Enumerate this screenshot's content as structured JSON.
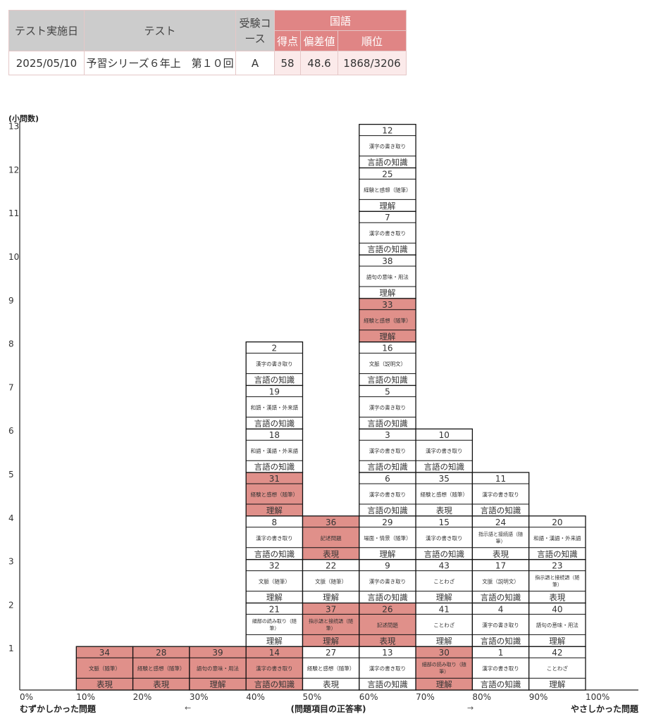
{
  "score_table": {
    "headers": {
      "date": "テスト実施日",
      "test": "テスト",
      "course": "受験コース",
      "subject": "国語",
      "score": "得点",
      "deviation": "偏差値",
      "rank": "順位"
    },
    "row": {
      "date": "2025/05/10",
      "test": "予習シリーズ６年上　第１０回",
      "course": "A",
      "score": "58",
      "deviation": "48.6",
      "rank": "1868/3206"
    }
  },
  "chart_data": {
    "type": "bar",
    "ylabel": "(小問数)",
    "xlabel": "(問題項目の正答率)",
    "left_label": "むずかしかった問題",
    "right_label": "やさしかった問題",
    "left_arrow": "←",
    "right_arrow": "→",
    "x_ticks": [
      "0%",
      "10%",
      "20%",
      "30%",
      "40%",
      "50%",
      "60%",
      "70%",
      "80%",
      "90%",
      "100%"
    ],
    "y_ticks": [
      "1",
      "2",
      "3",
      "4",
      "5",
      "6",
      "7",
      "8",
      "9",
      "10",
      "11",
      "12",
      "13"
    ],
    "ylim": [
      0,
      13
    ],
    "colors": {
      "missed": "#e0908a",
      "correct": "#ffffff",
      "text": "#333333"
    },
    "bins": [
      {
        "range": "10%",
        "items": [
          {
            "no": "34",
            "topic": "文脈（随筆）",
            "category": "表現",
            "missed": true
          }
        ]
      },
      {
        "range": "20%",
        "items": [
          {
            "no": "28",
            "topic": "経験と感想（随筆）",
            "category": "表現",
            "missed": true
          }
        ]
      },
      {
        "range": "30%",
        "items": [
          {
            "no": "39",
            "topic": "語句の意味・用法",
            "category": "理解",
            "missed": true
          }
        ]
      },
      {
        "range": "40%",
        "items": [
          {
            "no": "14",
            "topic": "漢字の書き取り",
            "category": "言語の知識",
            "missed": true
          },
          {
            "no": "21",
            "topic": "細部の読み取り（随筆）",
            "category": "理解",
            "missed": false
          },
          {
            "no": "32",
            "topic": "文脈（随筆）",
            "category": "理解",
            "missed": false
          },
          {
            "no": "8",
            "topic": "漢字の書き取り",
            "category": "言語の知識",
            "missed": false
          },
          {
            "no": "31",
            "topic": "経験と感想（随筆）",
            "category": "理解",
            "missed": true
          },
          {
            "no": "18",
            "topic": "和語・漢語・外来語",
            "category": "言語の知識",
            "missed": false
          },
          {
            "no": "19",
            "topic": "和語・漢語・外来語",
            "category": "言語の知識",
            "missed": false
          },
          {
            "no": "2",
            "topic": "漢字の書き取り",
            "category": "言語の知識",
            "missed": false
          }
        ]
      },
      {
        "range": "50%",
        "items": [
          {
            "no": "27",
            "topic": "経験と感想（随筆）",
            "category": "表現",
            "missed": false
          },
          {
            "no": "37",
            "topic": "指示語と接続語（随筆）",
            "category": "理解",
            "missed": true
          },
          {
            "no": "22",
            "topic": "文脈（随筆）",
            "category": "理解",
            "missed": false
          },
          {
            "no": "36",
            "topic": "記述問題",
            "category": "表現",
            "missed": true
          }
        ]
      },
      {
        "range": "60%",
        "items": [
          {
            "no": "13",
            "topic": "漢字の書き取り",
            "category": "言語の知識",
            "missed": false
          },
          {
            "no": "26",
            "topic": "記述問題",
            "category": "表現",
            "missed": true
          },
          {
            "no": "9",
            "topic": "漢字の書き取り",
            "category": "言語の知識",
            "missed": false
          },
          {
            "no": "29",
            "topic": "場面・情景（随筆）",
            "category": "理解",
            "missed": false
          },
          {
            "no": "6",
            "topic": "漢字の書き取り",
            "category": "言語の知識",
            "missed": false
          },
          {
            "no": "3",
            "topic": "漢字の書き取り",
            "category": "言語の知識",
            "missed": false
          },
          {
            "no": "5",
            "topic": "漢字の書き取り",
            "category": "言語の知識",
            "missed": false
          },
          {
            "no": "16",
            "topic": "文脈（説明文）",
            "category": "言語の知識",
            "missed": false
          },
          {
            "no": "33",
            "topic": "経験と感想（随筆）",
            "category": "理解",
            "missed": true
          },
          {
            "no": "38",
            "topic": "語句の意味・用法",
            "category": "理解",
            "missed": false
          },
          {
            "no": "7",
            "topic": "漢字の書き取り",
            "category": "言語の知識",
            "missed": false
          },
          {
            "no": "25",
            "topic": "経験と感想（随筆）",
            "category": "理解",
            "missed": false
          },
          {
            "no": "12",
            "topic": "漢字の書き取り",
            "category": "言語の知識",
            "missed": false
          }
        ]
      },
      {
        "range": "70%",
        "items": [
          {
            "no": "30",
            "topic": "細部の読み取り（随筆）",
            "category": "理解",
            "missed": true
          },
          {
            "no": "41",
            "topic": "ことわざ",
            "category": "理解",
            "missed": false
          },
          {
            "no": "43",
            "topic": "ことわざ",
            "category": "理解",
            "missed": false
          },
          {
            "no": "15",
            "topic": "漢字の書き取り",
            "category": "言語の知識",
            "missed": false
          },
          {
            "no": "35",
            "topic": "経験と感想（随筆）",
            "category": "表現",
            "missed": false
          },
          {
            "no": "10",
            "topic": "漢字の書き取り",
            "category": "言語の知識",
            "missed": false
          }
        ]
      },
      {
        "range": "80%",
        "items": [
          {
            "no": "1",
            "topic": "漢字の書き取り",
            "category": "言語の知識",
            "missed": false
          },
          {
            "no": "4",
            "topic": "漢字の書き取り",
            "category": "言語の知識",
            "missed": false
          },
          {
            "no": "17",
            "topic": "文脈（説明文）",
            "category": "言語の知識",
            "missed": false
          },
          {
            "no": "24",
            "topic": "指示語と接続語（随筆）",
            "category": "表現",
            "missed": false
          },
          {
            "no": "11",
            "topic": "漢字の書き取り",
            "category": "言語の知識",
            "missed": false
          }
        ]
      },
      {
        "range": "90%",
        "items": [
          {
            "no": "42",
            "topic": "ことわざ",
            "category": "理解",
            "missed": false
          },
          {
            "no": "40",
            "topic": "語句の意味・用法",
            "category": "理解",
            "missed": false
          },
          {
            "no": "23",
            "topic": "指示語と接続語（随筆）",
            "category": "表現",
            "missed": false
          },
          {
            "no": "20",
            "topic": "和語・漢語・外来語",
            "category": "言語の知識",
            "missed": false
          }
        ]
      }
    ]
  }
}
